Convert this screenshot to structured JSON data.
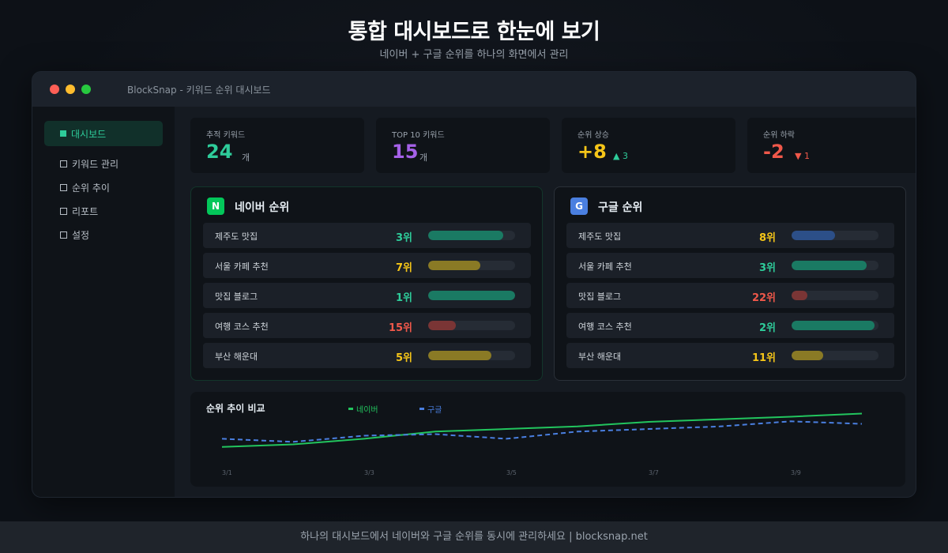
{
  "hero": {
    "title": "통합 대시보드로 한눈에 보기",
    "subtitle": "네이버 + 구글 순위를 하나의 화면에서 관리"
  },
  "window": {
    "title": "BlockSnap - 키워드 순위 대시보드"
  },
  "sidebar": {
    "active": "대시보드",
    "items": [
      {
        "label": "키워드 관리"
      },
      {
        "label": "순위 추이"
      },
      {
        "label": "리포트"
      },
      {
        "label": "설정"
      }
    ]
  },
  "stats": [
    {
      "label": "추적 키워드",
      "value": "24",
      "unit": "개",
      "color": "#2ecc9a"
    },
    {
      "label": "TOP 10 키워드",
      "value": "15",
      "unit": "개",
      "color": "#a561e8"
    },
    {
      "label": "순위 상승",
      "value": "+8",
      "unit": "▲ 3",
      "color": "#f5c518",
      "unitColor": "#2ecc9a"
    },
    {
      "label": "순위 하락",
      "value": "-2",
      "unit": "▼ 1",
      "color": "#f0584a",
      "unitColor": "#f0584a"
    }
  ],
  "naver": {
    "badge": "N",
    "title": "네이버 순위",
    "rows": [
      {
        "keyword": "제주도 맛집",
        "rank": "3위",
        "level": 0.86,
        "color": "#2ecc9a",
        "barColor": "#1a7a63"
      },
      {
        "keyword": "서울 카페 추천",
        "rank": "7위",
        "level": 0.6,
        "color": "#f5c518",
        "barColor": "#8a7a25"
      },
      {
        "keyword": "맛집 블로그",
        "rank": "1위",
        "level": 1.0,
        "color": "#2ecc9a",
        "barColor": "#1a7a63"
      },
      {
        "keyword": "여행 코스 추천",
        "rank": "15위",
        "level": 0.32,
        "color": "#f0584a",
        "barColor": "#7a3535"
      },
      {
        "keyword": "부산 해운대",
        "rank": "5위",
        "level": 0.73,
        "color": "#f5c518",
        "barColor": "#8a7a25"
      }
    ]
  },
  "google": {
    "badge": "G",
    "title": "구글 순위",
    "rows": [
      {
        "keyword": "제주도 맛집",
        "rank": "8위",
        "level": 0.5,
        "color": "#f5c518",
        "barColor": "#2c4f88"
      },
      {
        "keyword": "서울 카페 추천",
        "rank": "3위",
        "level": 0.86,
        "color": "#2ecc9a",
        "barColor": "#1a7a63"
      },
      {
        "keyword": "맛집 블로그",
        "rank": "22위",
        "level": 0.18,
        "color": "#f0584a",
        "barColor": "#7a3535"
      },
      {
        "keyword": "여행 코스 추천",
        "rank": "2위",
        "level": 0.95,
        "color": "#2ecc9a",
        "barColor": "#1a7a63"
      },
      {
        "keyword": "부산 해운대",
        "rank": "11위",
        "level": 0.36,
        "color": "#f5c518",
        "barColor": "#8a7a25"
      }
    ]
  },
  "trend": {
    "title": "순위 추이 비교",
    "legend_naver": "네이버",
    "legend_google": "구글"
  },
  "chart_data": {
    "type": "line",
    "title": "순위 추이 비교",
    "x": [
      "3/1",
      "3/2",
      "3/3",
      "3/4",
      "3/5",
      "3/6",
      "3/7",
      "3/8",
      "3/9",
      "3/10"
    ],
    "x_tick_labels": [
      "3/1",
      "3/3",
      "3/5",
      "3/7",
      "3/9"
    ],
    "ylim": [
      0,
      100
    ],
    "grid": false,
    "legend": "top",
    "series": [
      {
        "name": "네이버",
        "color": "#22c55e",
        "style": "solid",
        "values": [
          8,
          13,
          24,
          38,
          43,
          48,
          57,
          62,
          67,
          73
        ]
      },
      {
        "name": "구글",
        "color": "#4a7fe0",
        "style": "dashed",
        "values": [
          24,
          18,
          30,
          33,
          24,
          38,
          43,
          48,
          58,
          53
        ]
      }
    ]
  },
  "footer": {
    "text": "하나의 대시보드에서 네이버와 구글 순위를 동시에 관리하세요 | blocksnap.net"
  }
}
